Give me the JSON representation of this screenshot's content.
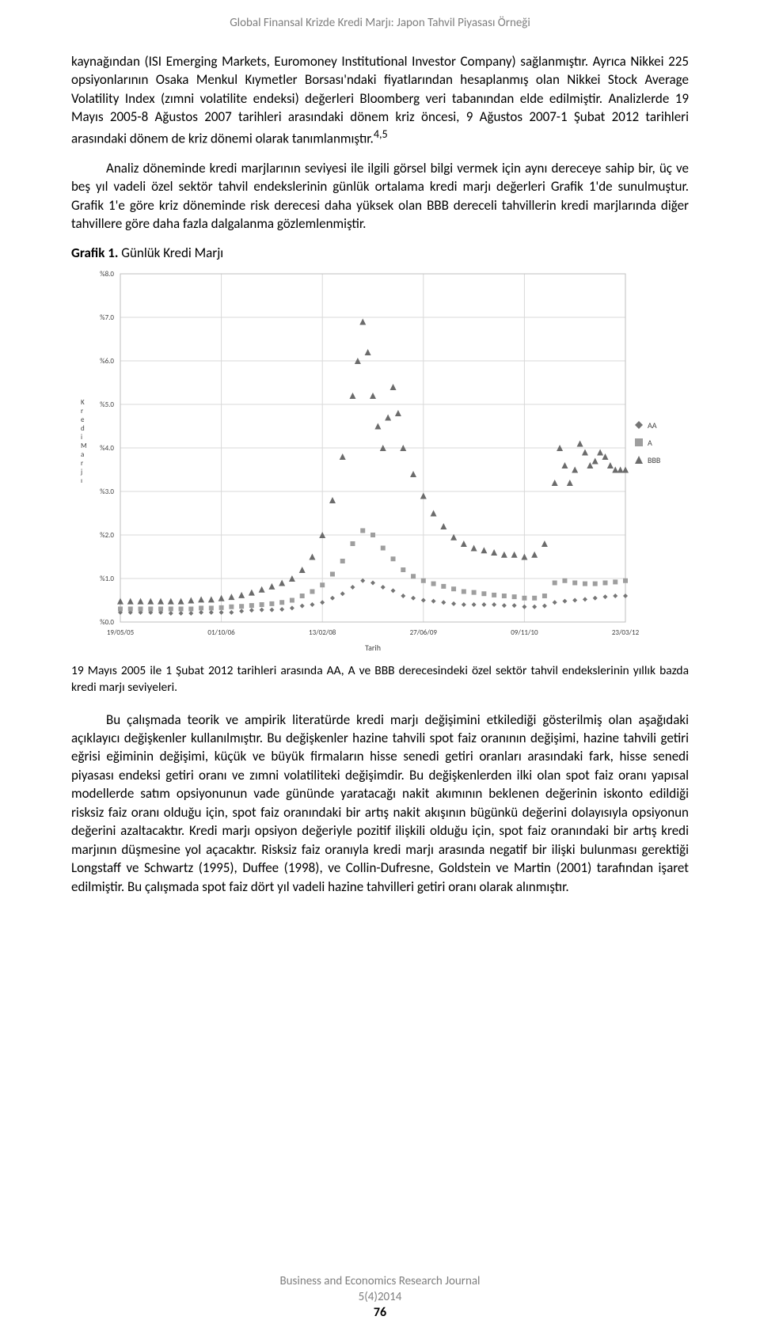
{
  "header": "Global Finansal Krizde Kredi Marjı: Japon Tahvil Piyasası Örneği",
  "para1": "kaynağından (ISI Emerging Markets, Euromoney Institutional Investor Company)  sağlanmıştır. Ayrıca Nikkei 225 opsiyonlarının Osaka Menkul Kıymetler Borsası'ndaki fiyatlarından hesaplanmış olan Nikkei Stock Average Volatility Index (zımni volatilite endeksi) değerleri Bloomberg veri tabanından elde edilmiştir. Analizlerde 19 Mayıs 2005-8 Ağustos 2007 tarihleri arasındaki dönem kriz öncesi, 9 Ağustos  2007-1 Şubat 2012 tarihleri arasındaki dönem de kriz dönemi olarak tanımlanmıştır.",
  "para1_sup": "4,5",
  "para2": "Analiz döneminde kredi marjlarının seviyesi ile ilgili görsel bilgi vermek için aynı dereceye sahip bir, üç ve beş yıl vadeli özel sektör  tahvil endekslerinin günlük ortalama  kredi marjı değerleri Grafik  1'de sunulmuştur. Grafik 1'e göre kriz döneminde  risk derecesi daha yüksek olan BBB dereceli tahvillerin kredi marjlarında diğer tahvillere göre daha fazla dalgalanma gözlemlenmiştir.",
  "chart_caption_bold": "Grafik 1.",
  "chart_caption_rest": " Günlük Kredi Marjı",
  "chart": {
    "type": "line",
    "x_axis": {
      "label": "Tarih",
      "ticks": [
        "19/05/05",
        "01/10/06",
        "13/02/08",
        "27/06/09",
        "09/11/10",
        "23/03/12"
      ],
      "tick_pos": [
        0,
        0.2,
        0.4,
        0.6,
        0.8,
        1.0
      ],
      "label_fontsize": 10,
      "tick_fontsize": 9,
      "color": "#404040"
    },
    "y_axis": {
      "label_letters": [
        "K",
        "r",
        "e",
        "d",
        "i",
        "M",
        "a",
        "r",
        "j",
        "ı"
      ],
      "ticks": [
        "%0.0",
        "%1.0",
        "%2.0",
        "%3.0",
        "%4.0",
        "%5.0",
        "%6.0",
        "%7.0",
        "%8.0"
      ],
      "tick_values": [
        0,
        1,
        2,
        3,
        4,
        5,
        6,
        7,
        8
      ],
      "ylim": [
        0,
        8
      ],
      "tick_fontsize": 9,
      "color": "#404040"
    },
    "grid": {
      "show": true,
      "color": "#d9d9d9",
      "width": 1
    },
    "background_color": "#ffffff",
    "plot_border_color": "#bfbfbf",
    "legend": {
      "position": "right",
      "items": [
        {
          "label": "AA",
          "marker": "diamond",
          "color": "#757575"
        },
        {
          "label": "A",
          "marker": "square",
          "color": "#9e9e9e"
        },
        {
          "label": "BBB",
          "marker": "triangle",
          "color": "#6b6b6b"
        }
      ],
      "fontsize": 10
    },
    "series": {
      "AA": {
        "color": "#757575",
        "marker": "diamond",
        "marker_size": 3,
        "points": [
          [
            0.0,
            0.22
          ],
          [
            0.02,
            0.22
          ],
          [
            0.04,
            0.22
          ],
          [
            0.06,
            0.22
          ],
          [
            0.08,
            0.22
          ],
          [
            0.1,
            0.2
          ],
          [
            0.12,
            0.2
          ],
          [
            0.14,
            0.2
          ],
          [
            0.16,
            0.22
          ],
          [
            0.18,
            0.22
          ],
          [
            0.2,
            0.22
          ],
          [
            0.22,
            0.22
          ],
          [
            0.24,
            0.25
          ],
          [
            0.26,
            0.27
          ],
          [
            0.28,
            0.28
          ],
          [
            0.3,
            0.28
          ],
          [
            0.32,
            0.29
          ],
          [
            0.34,
            0.32
          ],
          [
            0.36,
            0.37
          ],
          [
            0.38,
            0.4
          ],
          [
            0.4,
            0.45
          ],
          [
            0.42,
            0.55
          ],
          [
            0.44,
            0.65
          ],
          [
            0.46,
            0.8
          ],
          [
            0.48,
            0.95
          ],
          [
            0.5,
            0.9
          ],
          [
            0.52,
            0.8
          ],
          [
            0.54,
            0.72
          ],
          [
            0.56,
            0.6
          ],
          [
            0.58,
            0.55
          ],
          [
            0.6,
            0.5
          ],
          [
            0.62,
            0.48
          ],
          [
            0.64,
            0.45
          ],
          [
            0.66,
            0.42
          ],
          [
            0.68,
            0.4
          ],
          [
            0.7,
            0.4
          ],
          [
            0.72,
            0.4
          ],
          [
            0.74,
            0.4
          ],
          [
            0.76,
            0.38
          ],
          [
            0.78,
            0.38
          ],
          [
            0.8,
            0.35
          ],
          [
            0.82,
            0.35
          ],
          [
            0.84,
            0.37
          ],
          [
            0.86,
            0.45
          ],
          [
            0.88,
            0.48
          ],
          [
            0.9,
            0.5
          ],
          [
            0.92,
            0.52
          ],
          [
            0.94,
            0.55
          ],
          [
            0.96,
            0.58
          ],
          [
            0.98,
            0.6
          ],
          [
            1.0,
            0.6
          ]
        ]
      },
      "A": {
        "color": "#9e9e9e",
        "marker": "square",
        "marker_size": 3,
        "points": [
          [
            0.0,
            0.3
          ],
          [
            0.02,
            0.3
          ],
          [
            0.04,
            0.3
          ],
          [
            0.06,
            0.3
          ],
          [
            0.08,
            0.3
          ],
          [
            0.1,
            0.3
          ],
          [
            0.12,
            0.3
          ],
          [
            0.14,
            0.3
          ],
          [
            0.16,
            0.32
          ],
          [
            0.18,
            0.32
          ],
          [
            0.2,
            0.33
          ],
          [
            0.22,
            0.35
          ],
          [
            0.24,
            0.36
          ],
          [
            0.26,
            0.38
          ],
          [
            0.28,
            0.4
          ],
          [
            0.3,
            0.42
          ],
          [
            0.32,
            0.45
          ],
          [
            0.34,
            0.5
          ],
          [
            0.36,
            0.6
          ],
          [
            0.38,
            0.7
          ],
          [
            0.4,
            0.85
          ],
          [
            0.42,
            1.1
          ],
          [
            0.44,
            1.4
          ],
          [
            0.46,
            1.8
          ],
          [
            0.48,
            2.1
          ],
          [
            0.5,
            2.0
          ],
          [
            0.52,
            1.7
          ],
          [
            0.54,
            1.45
          ],
          [
            0.56,
            1.2
          ],
          [
            0.58,
            1.05
          ],
          [
            0.6,
            0.95
          ],
          [
            0.62,
            0.88
          ],
          [
            0.64,
            0.82
          ],
          [
            0.66,
            0.76
          ],
          [
            0.68,
            0.7
          ],
          [
            0.7,
            0.68
          ],
          [
            0.72,
            0.65
          ],
          [
            0.74,
            0.62
          ],
          [
            0.76,
            0.6
          ],
          [
            0.78,
            0.58
          ],
          [
            0.8,
            0.55
          ],
          [
            0.82,
            0.55
          ],
          [
            0.84,
            0.6
          ],
          [
            0.86,
            0.9
          ],
          [
            0.88,
            0.95
          ],
          [
            0.9,
            0.9
          ],
          [
            0.92,
            0.88
          ],
          [
            0.94,
            0.88
          ],
          [
            0.96,
            0.9
          ],
          [
            0.98,
            0.92
          ],
          [
            1.0,
            0.95
          ]
        ]
      },
      "BBB": {
        "color": "#6b6b6b",
        "marker": "triangle",
        "marker_size": 4,
        "points": [
          [
            0.0,
            0.48
          ],
          [
            0.02,
            0.48
          ],
          [
            0.04,
            0.48
          ],
          [
            0.06,
            0.48
          ],
          [
            0.08,
            0.48
          ],
          [
            0.1,
            0.48
          ],
          [
            0.12,
            0.48
          ],
          [
            0.14,
            0.5
          ],
          [
            0.16,
            0.52
          ],
          [
            0.18,
            0.52
          ],
          [
            0.2,
            0.55
          ],
          [
            0.22,
            0.58
          ],
          [
            0.24,
            0.62
          ],
          [
            0.26,
            0.68
          ],
          [
            0.28,
            0.75
          ],
          [
            0.3,
            0.82
          ],
          [
            0.32,
            0.9
          ],
          [
            0.34,
            1.0
          ],
          [
            0.36,
            1.2
          ],
          [
            0.38,
            1.5
          ],
          [
            0.4,
            2.0
          ],
          [
            0.42,
            2.8
          ],
          [
            0.44,
            3.8
          ],
          [
            0.46,
            5.2
          ],
          [
            0.47,
            6.0
          ],
          [
            0.48,
            6.9
          ],
          [
            0.49,
            6.2
          ],
          [
            0.5,
            5.2
          ],
          [
            0.51,
            4.5
          ],
          [
            0.52,
            4.0
          ],
          [
            0.53,
            4.7
          ],
          [
            0.54,
            5.4
          ],
          [
            0.55,
            4.8
          ],
          [
            0.56,
            4.0
          ],
          [
            0.58,
            3.4
          ],
          [
            0.6,
            2.9
          ],
          [
            0.62,
            2.5
          ],
          [
            0.64,
            2.2
          ],
          [
            0.66,
            1.95
          ],
          [
            0.68,
            1.8
          ],
          [
            0.7,
            1.7
          ],
          [
            0.72,
            1.65
          ],
          [
            0.74,
            1.6
          ],
          [
            0.76,
            1.55
          ],
          [
            0.78,
            1.55
          ],
          [
            0.8,
            1.5
          ],
          [
            0.82,
            1.55
          ],
          [
            0.84,
            1.8
          ],
          [
            0.86,
            3.2
          ],
          [
            0.87,
            4.0
          ],
          [
            0.88,
            3.6
          ],
          [
            0.89,
            3.2
          ],
          [
            0.9,
            3.5
          ],
          [
            0.91,
            4.1
          ],
          [
            0.92,
            3.9
          ],
          [
            0.93,
            3.6
          ],
          [
            0.94,
            3.7
          ],
          [
            0.95,
            3.9
          ],
          [
            0.96,
            3.8
          ],
          [
            0.97,
            3.6
          ],
          [
            0.98,
            3.5
          ],
          [
            0.99,
            3.5
          ],
          [
            1.0,
            3.5
          ]
        ]
      }
    }
  },
  "fig_caption": "19 Mayıs 2005 ile 1 Şubat 2012 tarihleri arasında AA, A ve BBB derecesindeki özel sektör tahvil endekslerinin yıllık bazda kredi marjı seviyeleri.",
  "para3": "Bu çalışmada teorik ve ampirik literatürde kredi marjı değişimini etkilediği gösterilmiş olan aşağıdaki açıklayıcı değişkenler kullanılmıştır. Bu değişkenler hazine tahvili spot faiz oranının değişimi, hazine tahvili getiri eğrisi eğiminin değişimi, küçük ve büyük firmaların hisse senedi getiri oranları arasındaki fark, hisse senedi piyasası endeksi getiri oranı ve zımni volatiliteki değişimdir.  Bu değişkenlerden ilki olan spot faiz oranı yapısal modellerde satım opsiyonunun vade gününde yaratacağı nakit akımının beklenen değerinin iskonto edildiği risksiz faiz oranı olduğu için,   spot faiz oranındaki bir artış nakit akışının bügünkü değerini dolayısıyla opsiyonun değerini azaltacaktır. Kredi marjı opsiyon değeriyle pozitif ilişkili olduğu için, spot faiz oranındaki bir artış  kredi marjının düşmesine yol açacaktır. Risksiz faiz oranıyla kredi marjı arasında negatif bir ilişki bulunması gerektiği Longstaff ve Schwartz (1995), Duffee (1998), ve Collin-Dufresne,  Goldstein  ve Martin (2001) tarafından işaret edilmiştir. Bu çalışmada spot faiz dört yıl vadeli hazine tahvilleri getiri oranı olarak alınmıştır.",
  "footer_line1": "Business and Economics Research Journal",
  "footer_line2": "5(4)2014",
  "footer_page": "76"
}
